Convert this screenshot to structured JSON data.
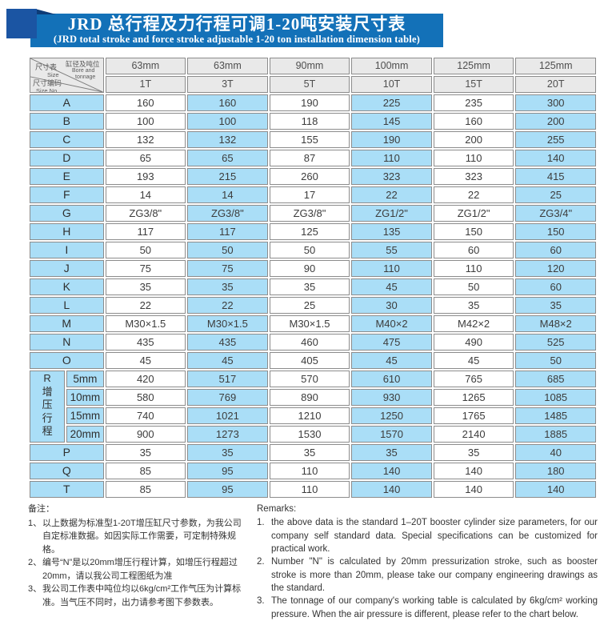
{
  "banner": {
    "title_zh": "JRD 总行程及力行程可调1-20吨安装尺寸表",
    "title_en": "(JRD total stroke and force stroke adjustable 1-20 ton installation dimension table)"
  },
  "table": {
    "corner": {
      "size_zh": "尺寸表",
      "size_en": "Size",
      "bore_zh": "缸径及吨位",
      "bore_en_1": "Bore and",
      "bore_en_2": "tonnage",
      "sizeno_zh": "尺寸编码",
      "sizeno_en": "Size No."
    },
    "bore_row": [
      "63mm",
      "63mm",
      "90mm",
      "100mm",
      "125mm",
      "125mm"
    ],
    "tonnage_row": [
      "1T",
      "3T",
      "5T",
      "10T",
      "15T",
      "20T"
    ],
    "rows_top": [
      {
        "label": "A",
        "values": [
          "160",
          "160",
          "190",
          "225",
          "235",
          "300"
        ]
      },
      {
        "label": "B",
        "values": [
          "100",
          "100",
          "118",
          "145",
          "160",
          "200"
        ]
      },
      {
        "label": "C",
        "values": [
          "132",
          "132",
          "155",
          "190",
          "200",
          "255"
        ]
      },
      {
        "label": "D",
        "values": [
          "65",
          "65",
          "87",
          "110",
          "110",
          "140"
        ]
      },
      {
        "label": "E",
        "values": [
          "193",
          "215",
          "260",
          "323",
          "323",
          "415"
        ]
      },
      {
        "label": "F",
        "values": [
          "14",
          "14",
          "17",
          "22",
          "22",
          "25"
        ]
      },
      {
        "label": "G",
        "values": [
          "ZG3/8\"",
          "ZG3/8\"",
          "ZG3/8\"",
          "ZG1/2\"",
          "ZG1/2\"",
          "ZG3/4\""
        ]
      },
      {
        "label": "H",
        "values": [
          "117",
          "117",
          "125",
          "135",
          "150",
          "150"
        ]
      },
      {
        "label": "I",
        "values": [
          "50",
          "50",
          "50",
          "55",
          "60",
          "60"
        ]
      },
      {
        "label": "J",
        "values": [
          "75",
          "75",
          "90",
          "110",
          "110",
          "120"
        ]
      },
      {
        "label": "K",
        "values": [
          "35",
          "35",
          "35",
          "45",
          "50",
          "60"
        ]
      },
      {
        "label": "L",
        "values": [
          "22",
          "22",
          "25",
          "30",
          "35",
          "35"
        ]
      },
      {
        "label": "M",
        "values": [
          "M30×1.5",
          "M30×1.5",
          "M30×1.5",
          "M40×2",
          "M42×2",
          "M48×2"
        ]
      },
      {
        "label": "N",
        "values": [
          "435",
          "435",
          "460",
          "475",
          "490",
          "525"
        ]
      },
      {
        "label": "O",
        "values": [
          "45",
          "45",
          "405",
          "45",
          "45",
          "50"
        ]
      }
    ],
    "r_section": {
      "label": "R",
      "label_vertical": "增压行程",
      "subrows": [
        {
          "label": "5mm",
          "values": [
            "420",
            "517",
            "570",
            "610",
            "765",
            "685"
          ]
        },
        {
          "label": "10mm",
          "values": [
            "580",
            "769",
            "890",
            "930",
            "1265",
            "1085"
          ]
        },
        {
          "label": "15mm",
          "values": [
            "740",
            "1021",
            "1210",
            "1250",
            "1765",
            "1485"
          ]
        },
        {
          "label": "20mm",
          "values": [
            "900",
            "1273",
            "1530",
            "1570",
            "2140",
            "1885"
          ]
        }
      ]
    },
    "rows_bottom": [
      {
        "label": "P",
        "values": [
          "35",
          "35",
          "35",
          "35",
          "35",
          "40"
        ]
      },
      {
        "label": "Q",
        "values": [
          "85",
          "95",
          "110",
          "140",
          "140",
          "180"
        ]
      },
      {
        "label": "T",
        "values": [
          "85",
          "95",
          "110",
          "140",
          "140",
          "140"
        ]
      }
    ]
  },
  "notes_zh": {
    "heading": "备注：",
    "items": [
      {
        "marker": "1、",
        "text": "以上数据为标准型1-20T增压缸尺寸参数，为我公司自定标准数据。如因实际工作需要，可定制特殊规格。"
      },
      {
        "marker": "2、",
        "text": "编号“N”是以20mm增压行程计算，如增压行程超过20mm，请以我公司工程图纸为准"
      },
      {
        "marker": "3、",
        "text": "我公司工作表中吨位均以6kg/cm²工作气压为计算标准。当气压不同时，出力请参考图下参数表。"
      }
    ]
  },
  "notes_en": {
    "heading": "Remarks:",
    "items": [
      {
        "marker": "1.",
        "text": "the above data is the standard 1–20T booster cylinder size parameters, for our company self standard data. Special specifications can be customized for practical work."
      },
      {
        "marker": "2.",
        "text": "Number \"N\" is calculated by 20mm pressurization stroke, such as booster stroke is more than 20mm, please take our company engineering drawings as the standard."
      },
      {
        "marker": "3.",
        "text": "The tonnage of our company's working table is calculated by 6kg/cm² working pressure. When the air pressure is different, please refer to the chart below."
      }
    ]
  },
  "colors": {
    "ribbon_blue": "#1371b8",
    "square_navy": "#1b55a3",
    "cell_blue": "#aadef7",
    "header_gray": "#e9e9e9",
    "border_gray": "#8c8c8c"
  }
}
